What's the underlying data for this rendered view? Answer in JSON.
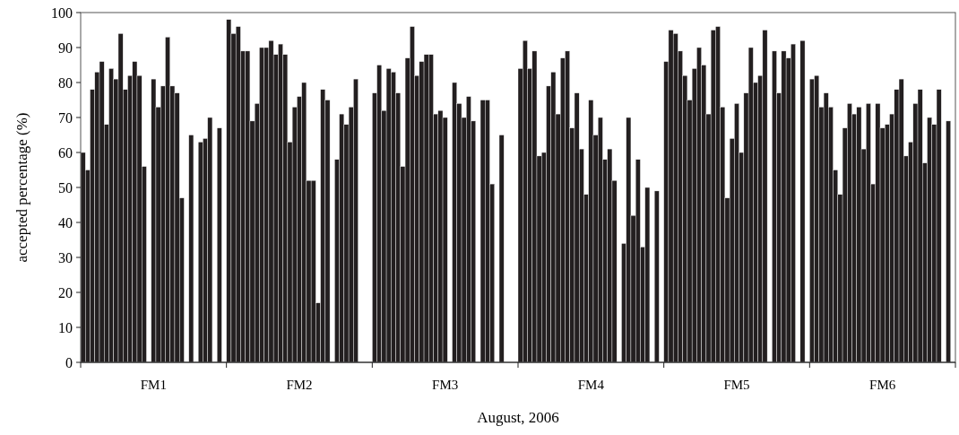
{
  "chart_data": {
    "type": "bar",
    "xlabel": "August, 2006",
    "ylabel": "accepted percentage (%)",
    "categories": [
      null,
      null,
      null,
      null,
      null,
      null,
      null,
      null,
      null,
      null,
      null,
      null,
      null,
      null,
      null,
      "FM1",
      null,
      null,
      null,
      null,
      null,
      null,
      null,
      null,
      null,
      null,
      null,
      null,
      null,
      null,
      null,
      null,
      null,
      null,
      null,
      null,
      null,
      null,
      null,
      null,
      null,
      null,
      null,
      null,
      null,
      null,
      "FM2",
      null,
      null,
      null,
      null,
      null,
      null,
      null,
      null,
      null,
      null,
      null,
      null,
      null,
      null,
      null,
      null,
      null,
      null,
      null,
      null,
      null,
      null,
      null,
      null,
      null,
      null,
      null,
      null,
      null,
      null,
      "FM3",
      null,
      null,
      null,
      null,
      null,
      null,
      null,
      null,
      null,
      null,
      null,
      null,
      null,
      null,
      null,
      null,
      null,
      null,
      null,
      null,
      null,
      null,
      null,
      null,
      null,
      null,
      null,
      null,
      null,
      null,
      "FM4",
      null,
      null,
      null,
      null,
      null,
      null,
      null,
      null,
      null,
      null,
      null,
      null,
      null,
      null,
      null,
      null,
      null,
      null,
      null,
      null,
      null,
      null,
      null,
      null,
      null,
      null,
      null,
      null,
      null,
      null,
      "FM5",
      null,
      null,
      null,
      null,
      null,
      null,
      null,
      null,
      null,
      null,
      null,
      null,
      null,
      null,
      null,
      null,
      null,
      null,
      null,
      null,
      null,
      null,
      null,
      null,
      null,
      null,
      null,
      null,
      null,
      null,
      "FM6",
      null,
      null,
      null,
      null,
      null,
      null,
      null,
      null,
      null,
      null,
      null,
      null,
      null,
      null,
      null
    ],
    "series": [
      {
        "color": "#231f20",
        "values": [
          60,
          55,
          78,
          83,
          86,
          68,
          84,
          81,
          94,
          78,
          82,
          86,
          82,
          56,
          null,
          81,
          73,
          79,
          93,
          79,
          77,
          47,
          null,
          65,
          null,
          63,
          64,
          70,
          null,
          67,
          null,
          98,
          94,
          96,
          89,
          89,
          69,
          74,
          90,
          90,
          92,
          88,
          91,
          88,
          63,
          73,
          76,
          80,
          52,
          52,
          17,
          78,
          75,
          null,
          58,
          71,
          68,
          73,
          81,
          null,
          null,
          null,
          77,
          85,
          72,
          84,
          83,
          77,
          56,
          87,
          96,
          82,
          86,
          88,
          88,
          71,
          72,
          70,
          null,
          80,
          74,
          70,
          76,
          69,
          null,
          75,
          75,
          51,
          null,
          65,
          null,
          null,
          null,
          84,
          92,
          84,
          89,
          59,
          60,
          79,
          83,
          71,
          87,
          89,
          67,
          77,
          61,
          48,
          75,
          65,
          70,
          58,
          61,
          52,
          null,
          34,
          70,
          42,
          58,
          33,
          50,
          null,
          49,
          null,
          86,
          95,
          94,
          89,
          82,
          75,
          84,
          90,
          85,
          71,
          95,
          96,
          73,
          47,
          64,
          74,
          60,
          77,
          90,
          80,
          82,
          95,
          null,
          89,
          77,
          89,
          87,
          91,
          null,
          92,
          null,
          81,
          82,
          73,
          77,
          73,
          55,
          48,
          67,
          74,
          71,
          73,
          61,
          74,
          51,
          74,
          67,
          68,
          71,
          78,
          81,
          59,
          63,
          74,
          78,
          57,
          70,
          68,
          78,
          null,
          69,
          null
        ]
      }
    ],
    "ylim": [
      0,
      100
    ],
    "yticks": [
      0,
      10,
      20,
      30,
      40,
      50,
      60,
      70,
      80,
      90,
      100
    ]
  }
}
